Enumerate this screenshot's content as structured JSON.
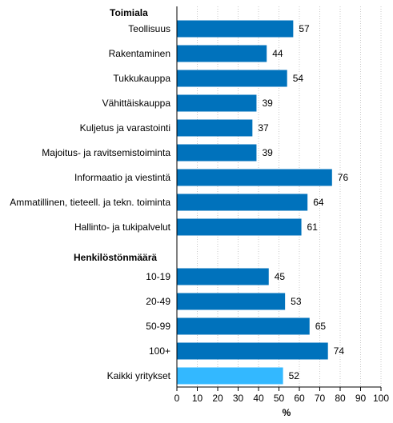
{
  "chart_data": {
    "type": "bar",
    "orientation": "horizontal",
    "group_headings": [
      "Toimiala",
      "Henkilöstönmäärä"
    ],
    "categories": [
      "Teollisuus",
      "Rakentaminen",
      "Tukkukauppa",
      "Vähittäiskauppa",
      "Kuljetus ja varastointi",
      "Majoitus- ja ravitsemistoiminta",
      "Informaatio ja viestintä",
      "Ammatillinen, tieteell. ja tekn. toiminta",
      "Hallinto- ja tukipalvelut",
      "10-19",
      "20-49",
      "50-99",
      "100+",
      "Kaikki yritykset"
    ],
    "groups": [
      0,
      0,
      0,
      0,
      0,
      0,
      0,
      0,
      0,
      1,
      1,
      1,
      1,
      2
    ],
    "values": [
      57,
      44,
      54,
      39,
      37,
      39,
      76,
      64,
      61,
      45,
      53,
      65,
      74,
      52
    ],
    "value_labels": [
      "57",
      "44",
      "54",
      "39",
      "37",
      "39",
      "76",
      "64",
      "61",
      "45",
      "53",
      "65",
      "74",
      "52"
    ],
    "bar_colors": [
      "#0072bc",
      "#0072bc",
      "#0072bc",
      "#0072bc",
      "#0072bc",
      "#0072bc",
      "#0072bc",
      "#0072bc",
      "#0072bc",
      "#0072bc",
      "#0072bc",
      "#0072bc",
      "#0072bc",
      "#33b8ff"
    ],
    "xlabel": "%",
    "xlim": [
      0,
      100
    ],
    "xticks": [
      0,
      10,
      20,
      30,
      40,
      50,
      60,
      70,
      80,
      90,
      100
    ],
    "xtick_labels": [
      "0",
      "10",
      "20",
      "30",
      "40",
      "50",
      "60",
      "70",
      "80",
      "90",
      "100"
    ],
    "grid": "vertical dotted",
    "legend": "none"
  }
}
